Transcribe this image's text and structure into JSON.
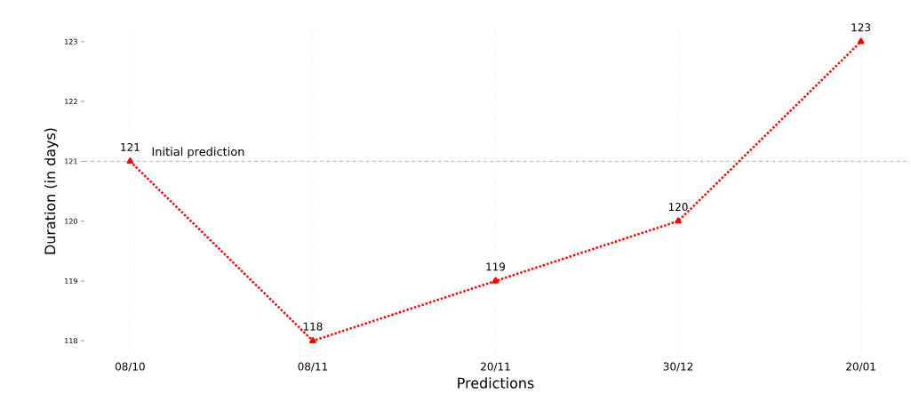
{
  "chart_data": {
    "type": "line",
    "xlabel": "Predictions",
    "ylabel": "Duration (in days)",
    "categories": [
      "08/10",
      "08/11",
      "20/11",
      "30/12",
      "20/01"
    ],
    "values": [
      121,
      118,
      119,
      120,
      123
    ],
    "color": "#ff0000",
    "marker": "triangle",
    "line_style": "dotted",
    "data_labels": true,
    "ylim": [
      117.75,
      123.25
    ],
    "yticks": [
      118,
      119,
      120,
      121,
      122,
      123
    ],
    "grid": "x",
    "ref_lines": [
      {
        "axis": "y",
        "value": 121,
        "label": "Initial prediction",
        "color": "#0000ff",
        "line_style": "dashdotted"
      }
    ]
  }
}
